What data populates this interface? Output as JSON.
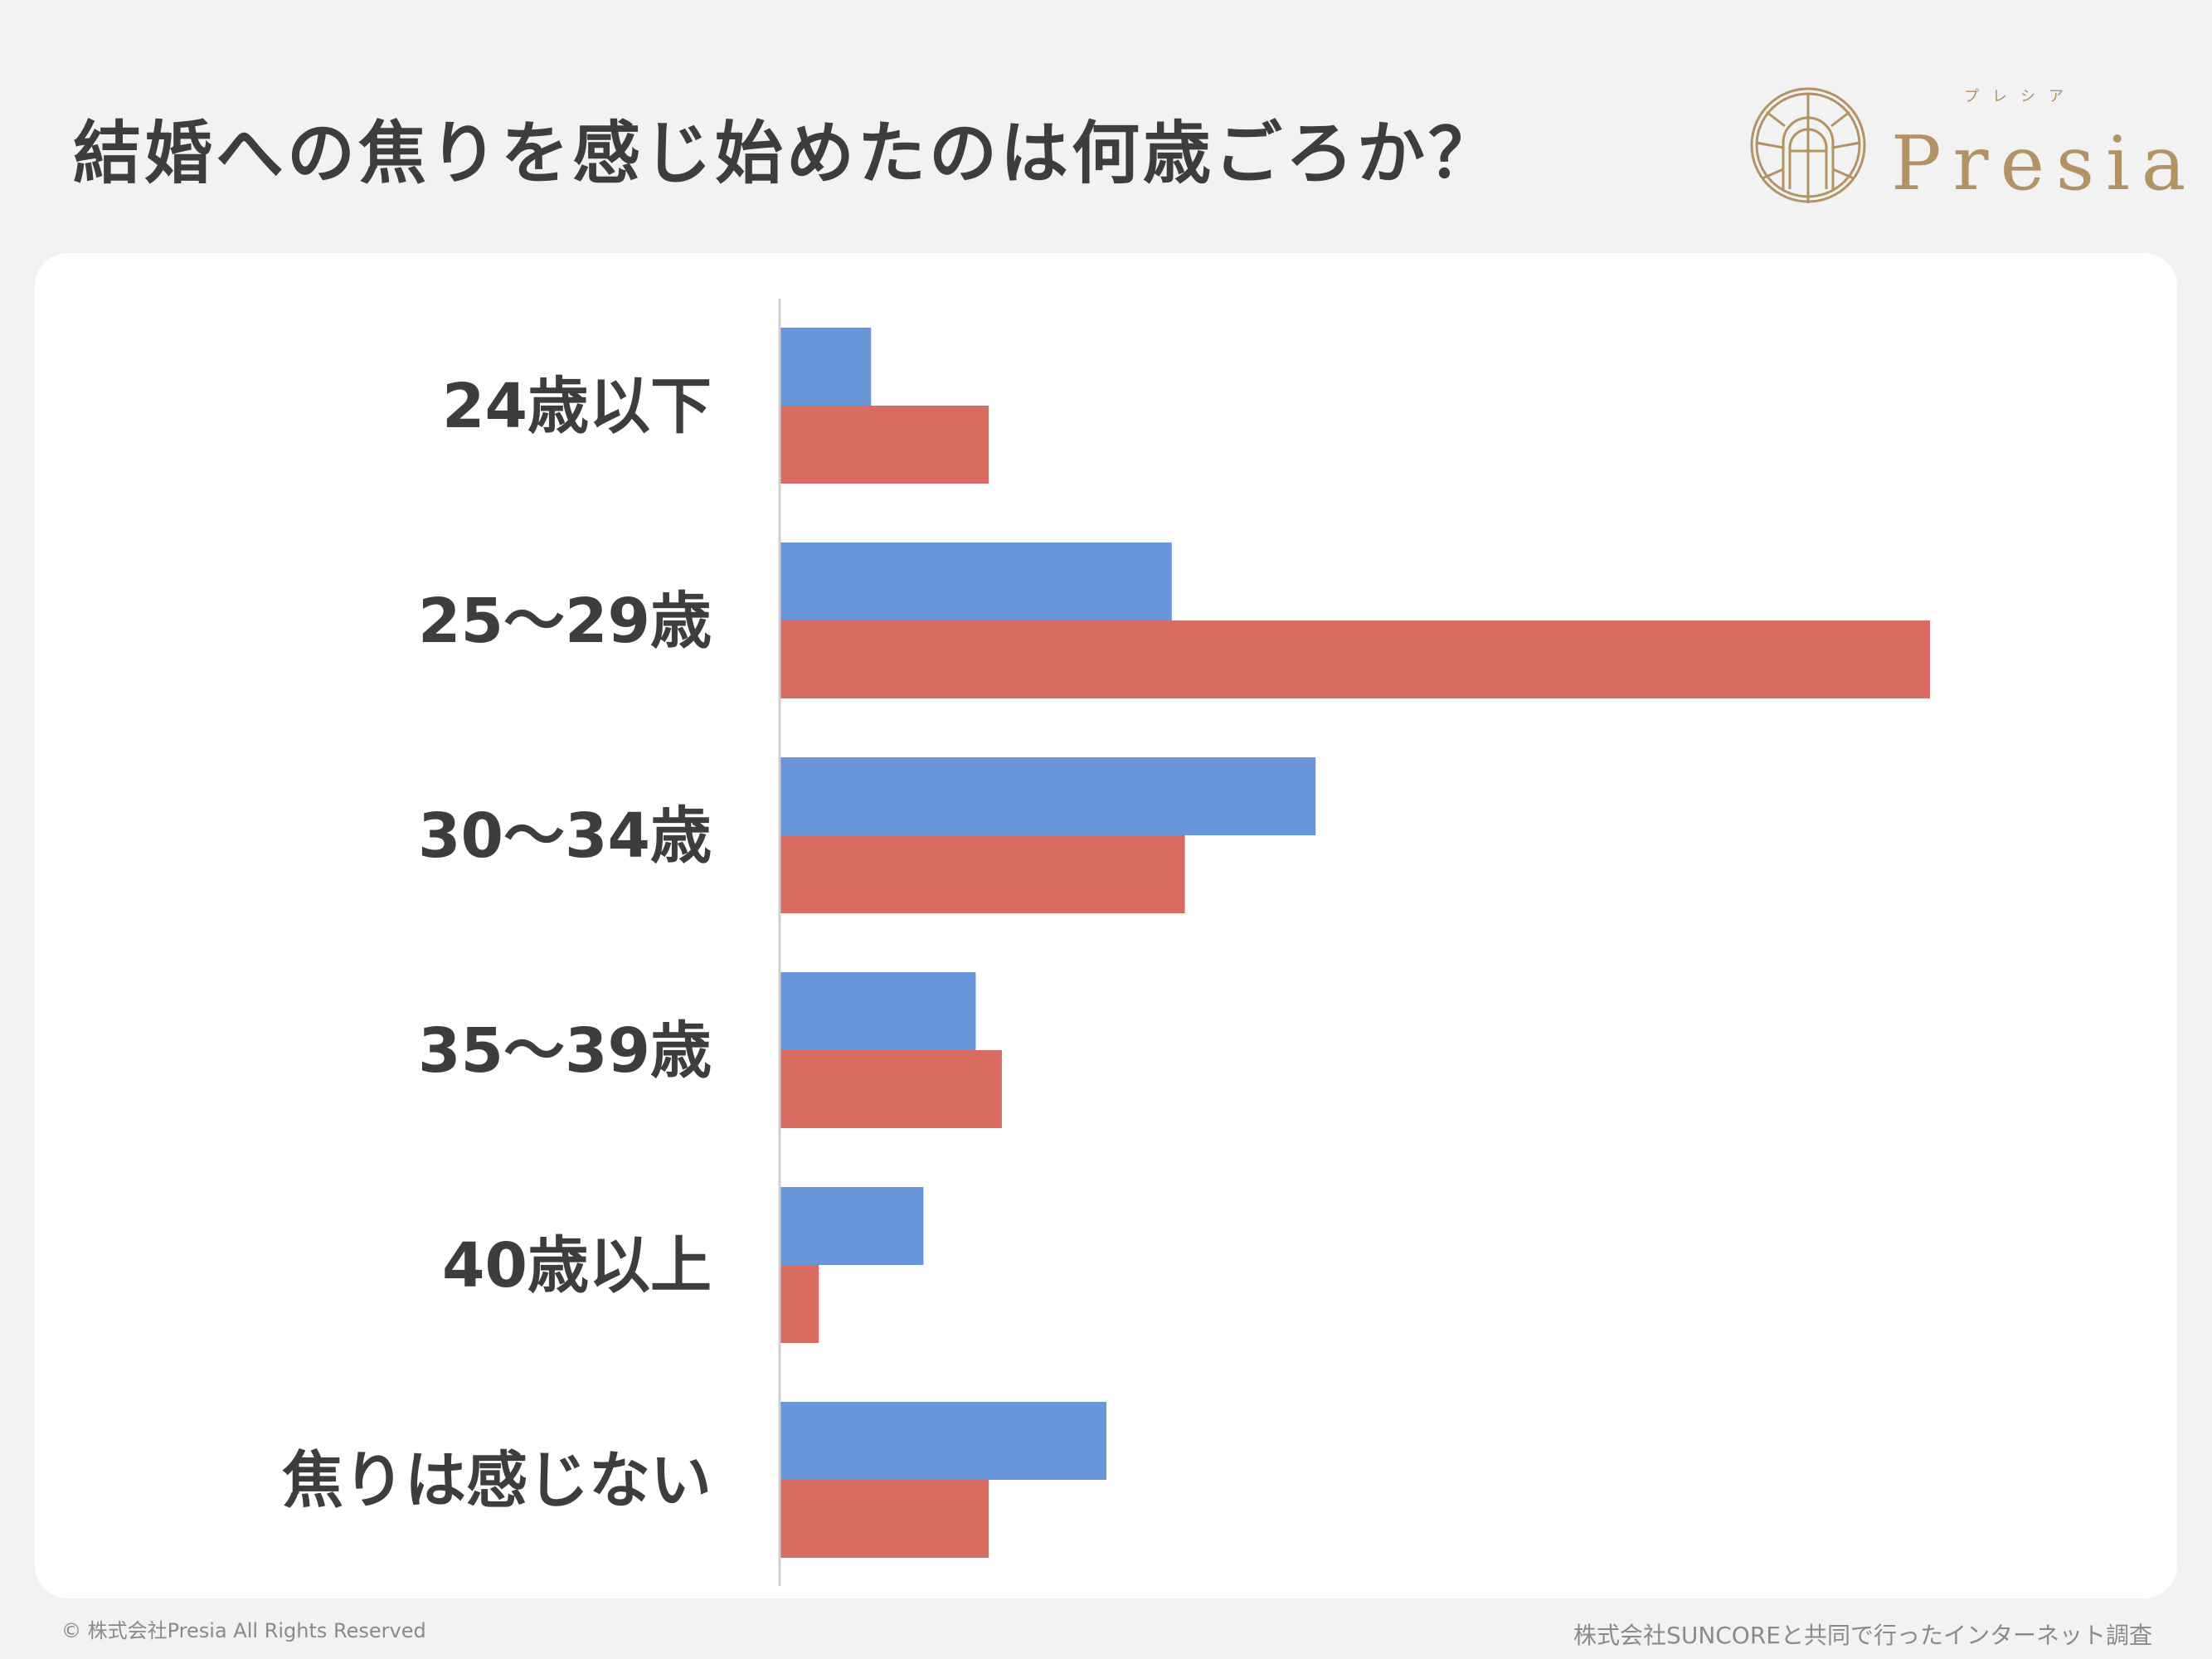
{
  "title": "結婚への焦りを感じ始めたのは何歳ごろか？",
  "logo": {
    "text": "Presia",
    "ruby": "プレシア",
    "color": "#b39263"
  },
  "footer": {
    "copyright": "© 株式会社Presia All Rights Reserved",
    "source": "株式会社SUNCOREと共同で行ったインターネット調査"
  },
  "chart_data": {
    "type": "bar",
    "orientation": "horizontal",
    "categories": [
      "24歳以下",
      "25〜29歳",
      "30〜34歳",
      "35〜39歳",
      "40歳以上",
      "焦りは感じない"
    ],
    "series": [
      {
        "color": "#6896d9",
        "values": [
          7,
          30,
          41,
          15,
          11,
          25
        ]
      },
      {
        "color": "#d96b62",
        "values": [
          16,
          88,
          31,
          17,
          3,
          16
        ]
      }
    ],
    "xlim": [
      0,
      88
    ],
    "grid": false,
    "legend": "none"
  }
}
